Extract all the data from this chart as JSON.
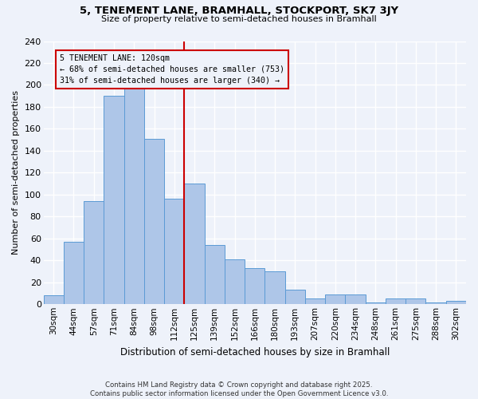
{
  "title1": "5, TENEMENT LANE, BRAMHALL, STOCKPORT, SK7 3JY",
  "title2": "Size of property relative to semi-detached houses in Bramhall",
  "xlabel": "Distribution of semi-detached houses by size in Bramhall",
  "ylabel": "Number of semi-detached properties",
  "categories": [
    "30sqm",
    "44sqm",
    "57sqm",
    "71sqm",
    "84sqm",
    "98sqm",
    "112sqm",
    "125sqm",
    "139sqm",
    "152sqm",
    "166sqm",
    "180sqm",
    "193sqm",
    "207sqm",
    "220sqm",
    "234sqm",
    "248sqm",
    "261sqm",
    "275sqm",
    "288sqm",
    "302sqm"
  ],
  "values": [
    8,
    57,
    94,
    190,
    200,
    151,
    96,
    110,
    54,
    41,
    33,
    30,
    13,
    5,
    9,
    9,
    2,
    5,
    5,
    2,
    3
  ],
  "bar_color": "#aec6e8",
  "bar_edge_color": "#5b9bd5",
  "property_label": "5 TENEMENT LANE: 120sqm",
  "pct_smaller": 68,
  "n_smaller": 753,
  "pct_larger": 31,
  "n_larger": 340,
  "vline_color": "#cc0000",
  "box_color": "#cc0000",
  "background_color": "#eef2fa",
  "ylim": [
    0,
    240
  ],
  "yticks": [
    0,
    20,
    40,
    60,
    80,
    100,
    120,
    140,
    160,
    180,
    200,
    220,
    240
  ],
  "footer": "Contains HM Land Registry data © Crown copyright and database right 2025.\nContains public sector information licensed under the Open Government Licence v3.0.",
  "vline_x_index": 6.5
}
